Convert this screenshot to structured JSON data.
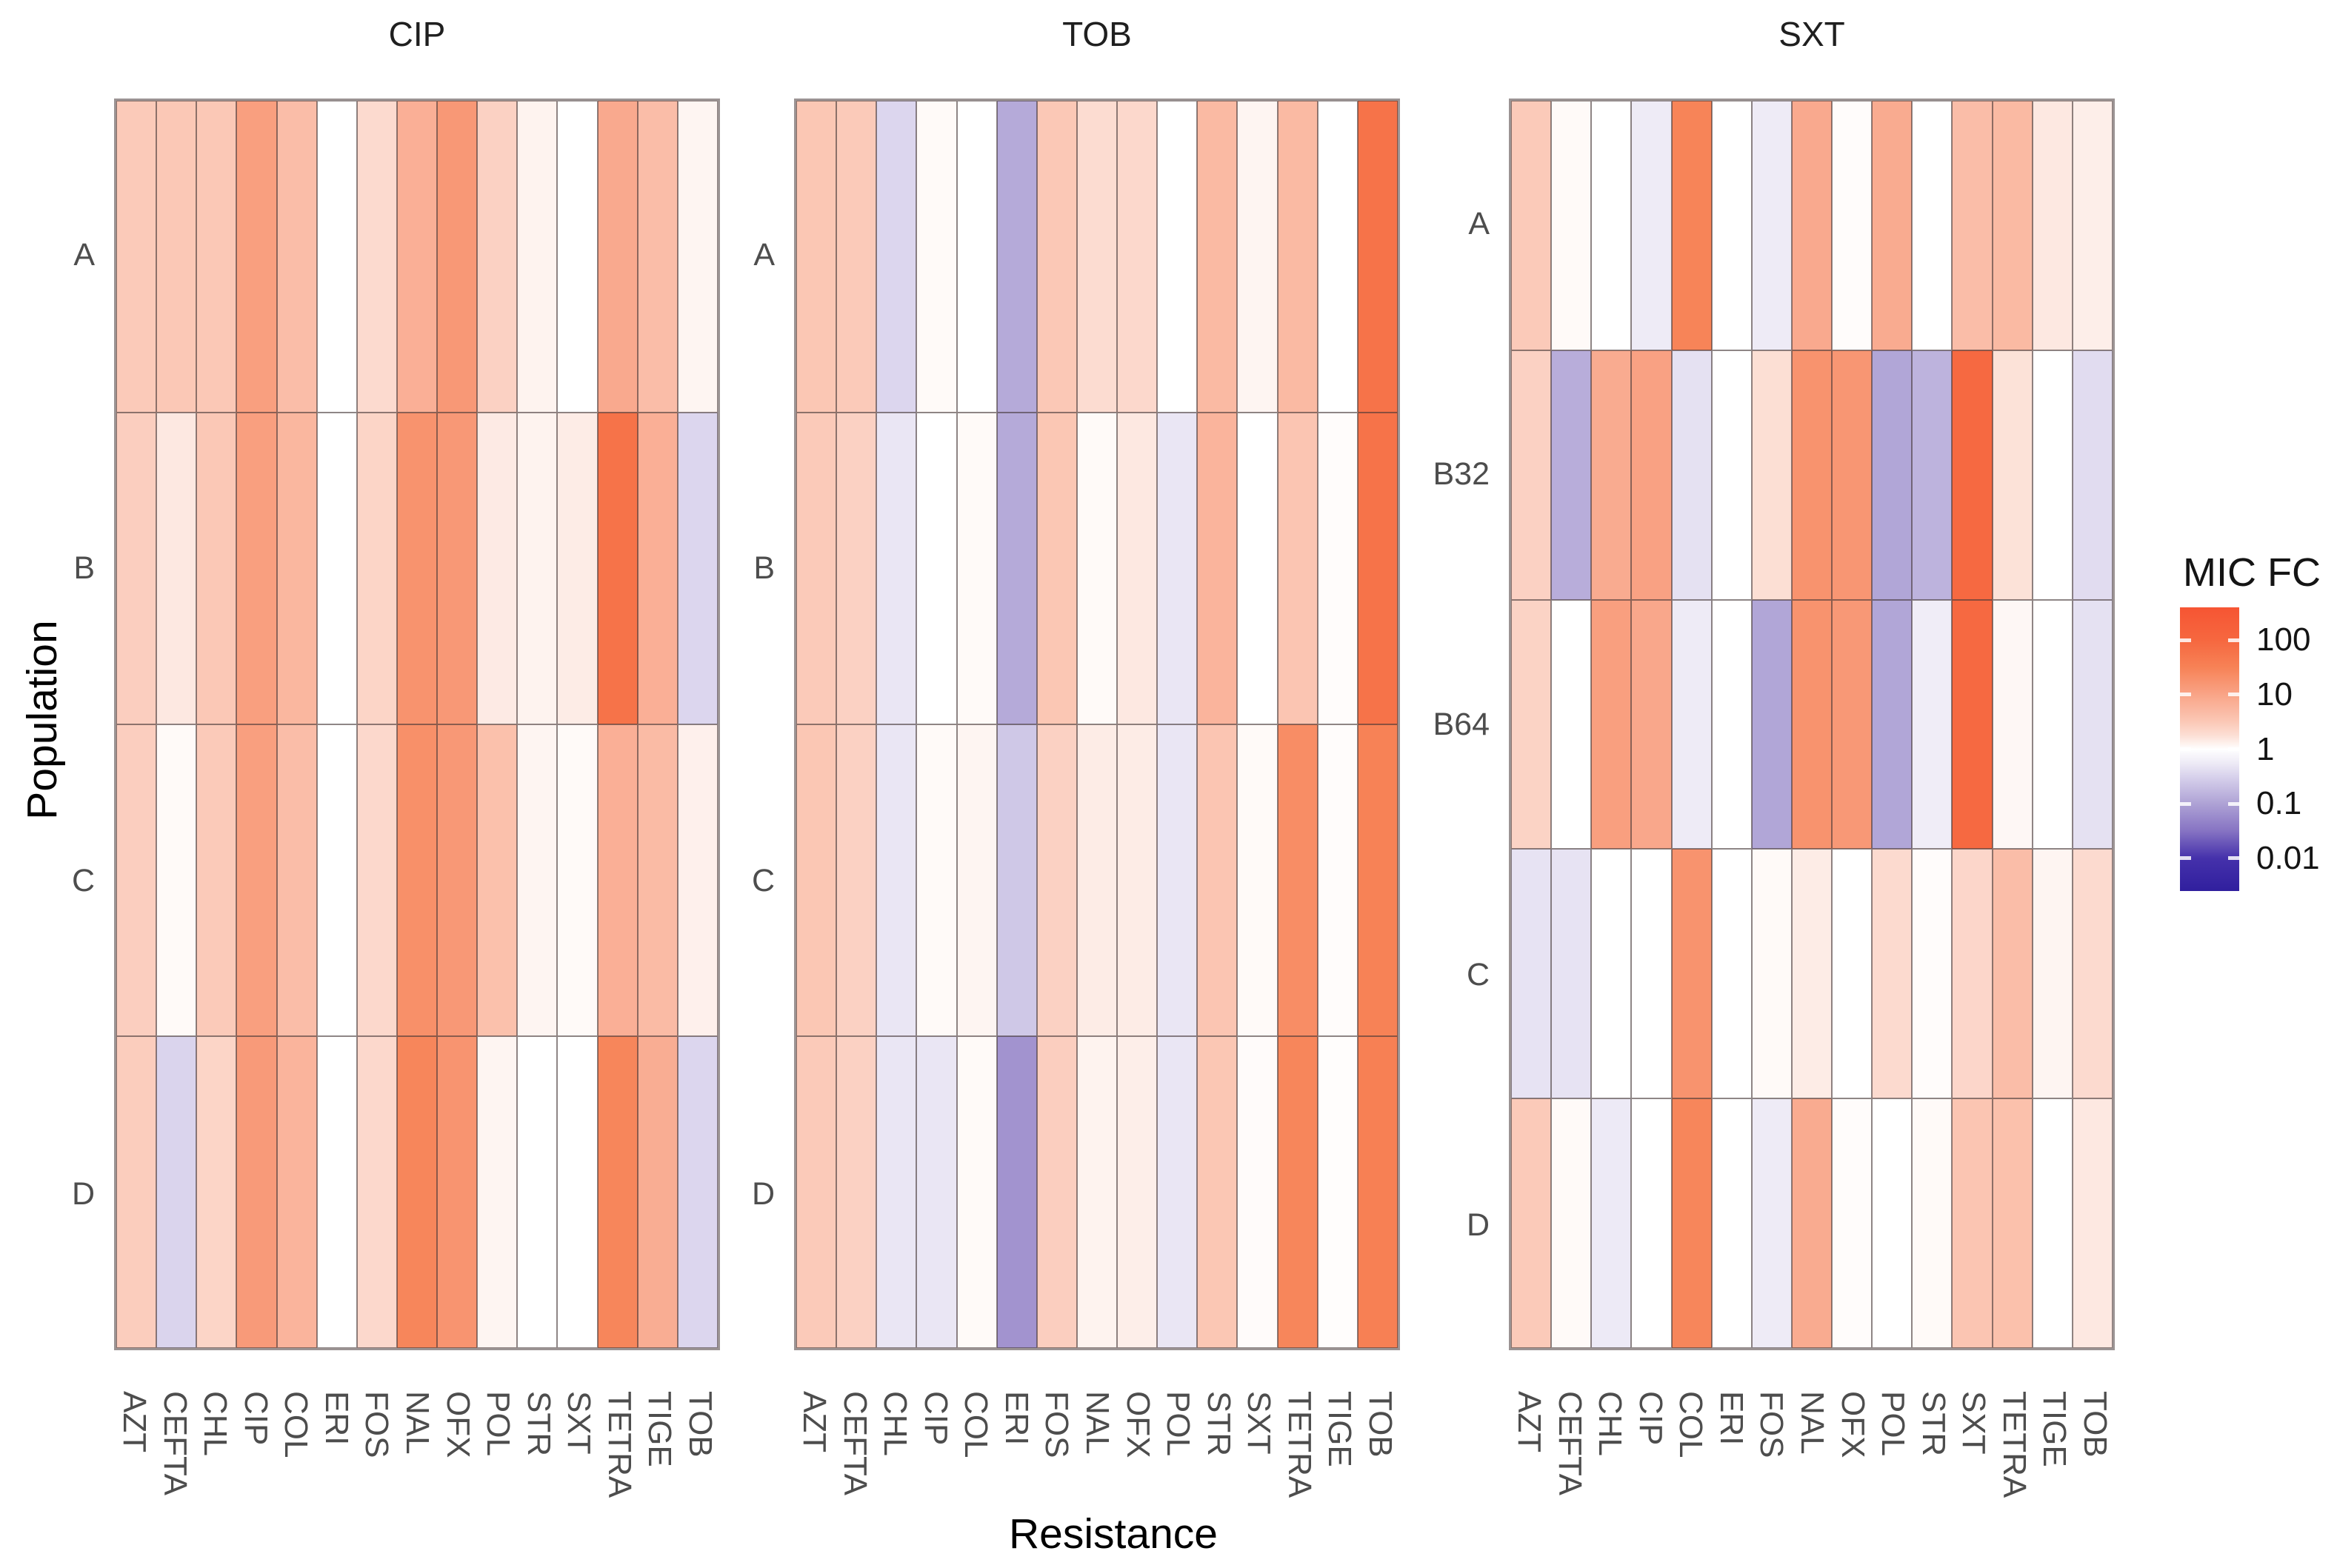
{
  "chart_data": {
    "type": "heatmap",
    "title": "",
    "xlabel": "Resistance",
    "ylabel": "Population",
    "columns": [
      "AZT",
      "CEFTA",
      "CHL",
      "CIP",
      "COL",
      "ERI",
      "FOS",
      "NAL",
      "OFX",
      "POL",
      "STR",
      "SXT",
      "TETRA",
      "TIGE",
      "TOB"
    ],
    "facets": "columns faceted by selecting antibiotic: CIP, TOB, SXT",
    "panels": [
      {
        "title": "CIP",
        "rows": [
          "A",
          "B",
          "C",
          "D"
        ],
        "values": [
          [
            3,
            3.2,
            3.2,
            12,
            4.5,
            1,
            2,
            7,
            15,
            2.5,
            1.25,
            1,
            8.5,
            4.5,
            1.2
          ],
          [
            2.7,
            1.5,
            3.2,
            12,
            5.5,
            1,
            2.3,
            18,
            15,
            1.45,
            1.25,
            1.4,
            60,
            7,
            0.35
          ],
          [
            2.7,
            1.1,
            3,
            12,
            4.5,
            1,
            2.1,
            20,
            15,
            4,
            1.2,
            1.1,
            7,
            4.8,
            1.3
          ],
          [
            2.8,
            0.33,
            2.3,
            14,
            6,
            1,
            2.1,
            28,
            17,
            1.2,
            1,
            1,
            28,
            7.5,
            0.35
          ]
        ]
      },
      {
        "title": "TOB",
        "rows": [
          "A",
          "B",
          "C",
          "D"
        ],
        "values": [
          [
            3.3,
            3,
            0.35,
            1.1,
            1,
            0.12,
            3.2,
            1.9,
            2.1,
            1,
            5,
            1.2,
            5,
            1,
            60
          ],
          [
            3,
            2.5,
            0.5,
            1,
            1.1,
            0.12,
            3.3,
            1.1,
            1.5,
            0.5,
            6,
            1,
            3.5,
            1.05,
            60
          ],
          [
            3.3,
            2.5,
            0.5,
            1.1,
            1.2,
            0.25,
            2.5,
            1.4,
            1.4,
            0.5,
            3.5,
            1.1,
            22,
            1.05,
            32
          ],
          [
            3,
            2.5,
            0.5,
            0.5,
            1.1,
            0.07,
            2.7,
            1.25,
            1.35,
            0.5,
            3.3,
            1.07,
            28,
            1.04,
            35
          ]
        ]
      },
      {
        "title": "SXT",
        "rows": [
          "A",
          "B32",
          "B64",
          "C",
          "D"
        ],
        "values": [
          [
            3,
            1.1,
            1,
            0.56,
            30,
            1,
            0.56,
            8.5,
            1.05,
            8,
            1,
            4.5,
            5,
            1.5,
            1.35
          ],
          [
            2.5,
            0.13,
            8,
            11,
            0.45,
            1,
            1.8,
            18,
            16,
            0.11,
            0.15,
            90,
            1.7,
            1,
            0.4
          ],
          [
            2.4,
            1,
            12,
            9,
            0.56,
            1,
            0.11,
            18,
            15,
            0.11,
            0.6,
            90,
            1.15,
            1,
            0.45
          ],
          [
            0.47,
            0.47,
            1,
            1,
            18,
            1,
            1.1,
            1.4,
            1,
            2,
            1.05,
            2.2,
            4.5,
            1.2,
            2
          ],
          [
            3,
            1.1,
            0.55,
            1,
            28,
            1,
            0.56,
            8,
            1.05,
            1,
            1.1,
            3.5,
            4,
            1,
            1.5
          ]
        ]
      }
    ],
    "legend": {
      "title": "MIC FC",
      "ticks": [
        {
          "label": "100",
          "log10": 2
        },
        {
          "label": "10",
          "log10": 1
        },
        {
          "label": "1",
          "log10": 0
        },
        {
          "label": "0.1",
          "log10": -1
        },
        {
          "label": "0.01",
          "log10": -2
        }
      ]
    },
    "scale": {
      "kind": "diverging log10 color scale, white at 1",
      "domain_log10": [
        -2.6,
        2.6
      ],
      "color_stops": [
        {
          "log10": 2.6,
          "color": "#f65533"
        },
        {
          "log10": 2.0,
          "color": "#f6673f"
        },
        {
          "log10": 1.5,
          "color": "#f78256"
        },
        {
          "log10": 1.0,
          "color": "#f9a487"
        },
        {
          "log10": 0.5,
          "color": "#fbc8b6"
        },
        {
          "log10": 0.25,
          "color": "#fcdfd5"
        },
        {
          "log10": 0.0,
          "color": "#ffffff"
        },
        {
          "log10": -0.25,
          "color": "#eeebf6"
        },
        {
          "log10": -0.5,
          "color": "#d8d2ec"
        },
        {
          "log10": -1.0,
          "color": "#aea2d5"
        },
        {
          "log10": -1.5,
          "color": "#8673c3"
        },
        {
          "log10": -2.0,
          "color": "#4531ab"
        },
        {
          "log10": -2.6,
          "color": "#301f9e"
        }
      ]
    },
    "text_colors": {
      "facet_title": "#1f1f1f",
      "axis_tick_label": "#4d4d4d",
      "axis_title": "#000000",
      "legend_text": "#141414"
    }
  }
}
